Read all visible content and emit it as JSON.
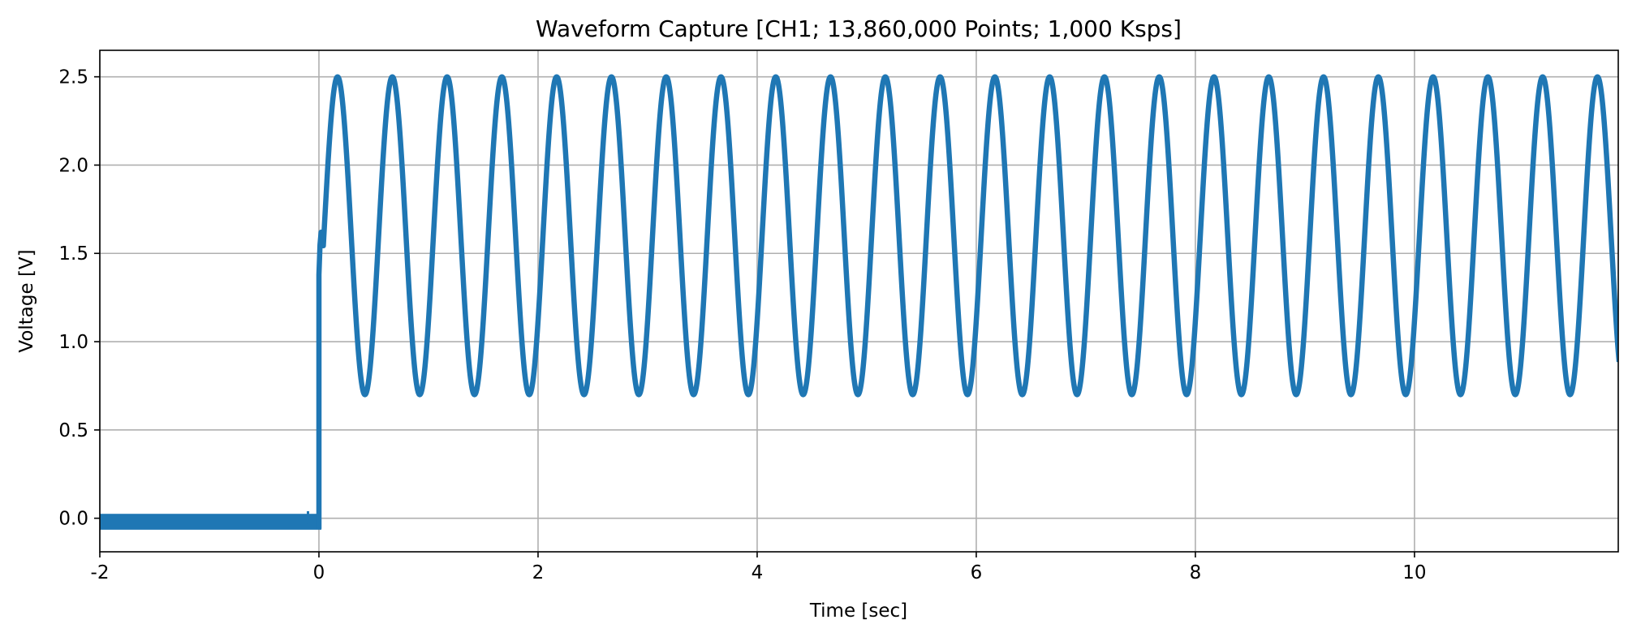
{
  "chart_data": {
    "type": "line",
    "title": "Waveform Capture [CH1; 13,860,000 Points; 1,000 Ksps]",
    "xlabel": "Time [sec]",
    "ylabel": "Voltage [V]",
    "xlim": [
      -2,
      11.86
    ],
    "ylim": [
      -0.19,
      2.65
    ],
    "x_ticks": [
      -2,
      0,
      2,
      4,
      6,
      8,
      10
    ],
    "x_tick_labels": [
      "-2",
      "0",
      "2",
      "4",
      "6",
      "8",
      "10"
    ],
    "y_ticks": [
      0.0,
      0.5,
      1.0,
      1.5,
      2.0,
      2.5
    ],
    "y_tick_labels": [
      "0.0",
      "0.5",
      "1.0",
      "1.5",
      "2.0",
      "2.5"
    ],
    "grid": true,
    "series": [
      {
        "signal": {
          "pre_trigger_level": -0.02,
          "trigger_time": 0.0,
          "step_level": 1.6,
          "sine_offset": 1.6,
          "sine_amplitude": 0.9,
          "sine_frequency_hz": 2.0,
          "sine_first_peak_time": 0.17,
          "noise_band": 0.05
        },
        "points": [
          [
            -2,
            -0.02
          ],
          [
            0,
            -0.02
          ],
          [
            0.02,
            1.6
          ],
          [
            0.17,
            2.5
          ],
          [
            0.42,
            0.7
          ],
          [
            0.67,
            2.5
          ],
          [
            0.92,
            0.7
          ],
          [
            1.17,
            2.5
          ],
          [
            1.42,
            0.7
          ],
          [
            1.67,
            2.5
          ],
          [
            1.92,
            0.7
          ],
          [
            2.17,
            2.5
          ],
          [
            2.42,
            0.7
          ],
          [
            2.67,
            2.5
          ],
          [
            2.92,
            0.7
          ],
          [
            11.67,
            2.5
          ],
          [
            11.86,
            1.05
          ]
        ]
      }
    ],
    "colors": {
      "line": "#1f77b4",
      "grid": "#b0b0b0",
      "axes": "#000000"
    }
  }
}
